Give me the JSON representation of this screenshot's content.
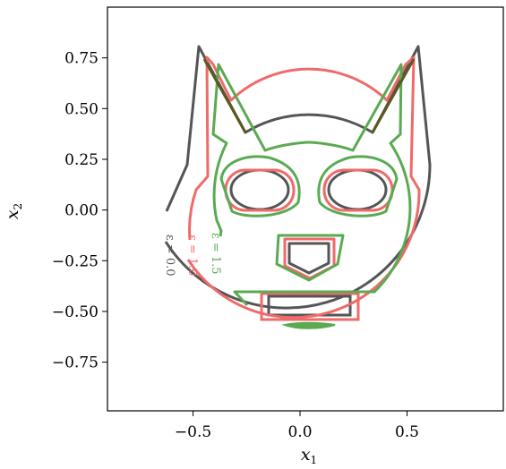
{
  "chart_data": {
    "type": "line",
    "title": "",
    "xlabel": "x1",
    "ylabel": "x2",
    "xlim": [
      -0.9,
      0.95
    ],
    "ylim": [
      -0.99,
      1.0
    ],
    "xticks": [
      -0.5,
      0.0,
      0.5
    ],
    "xtick_labels": [
      "−0.5",
      "0.0",
      "0.5"
    ],
    "yticks": [
      0.75,
      0.5,
      0.25,
      0.0,
      -0.25,
      -0.5,
      -0.75
    ],
    "ytick_labels": [
      "0.75",
      "0.50",
      "0.25",
      "0.00",
      "−0.25",
      "−0.50",
      "−0.75"
    ],
    "grid": false,
    "series": [
      {
        "name": "ε = 0.0",
        "color": "#555555"
      },
      {
        "name": "ε = 1.0",
        "color": "#f06a6a"
      },
      {
        "name": "ε = 1.5",
        "color": "#5aaa52"
      }
    ]
  }
}
